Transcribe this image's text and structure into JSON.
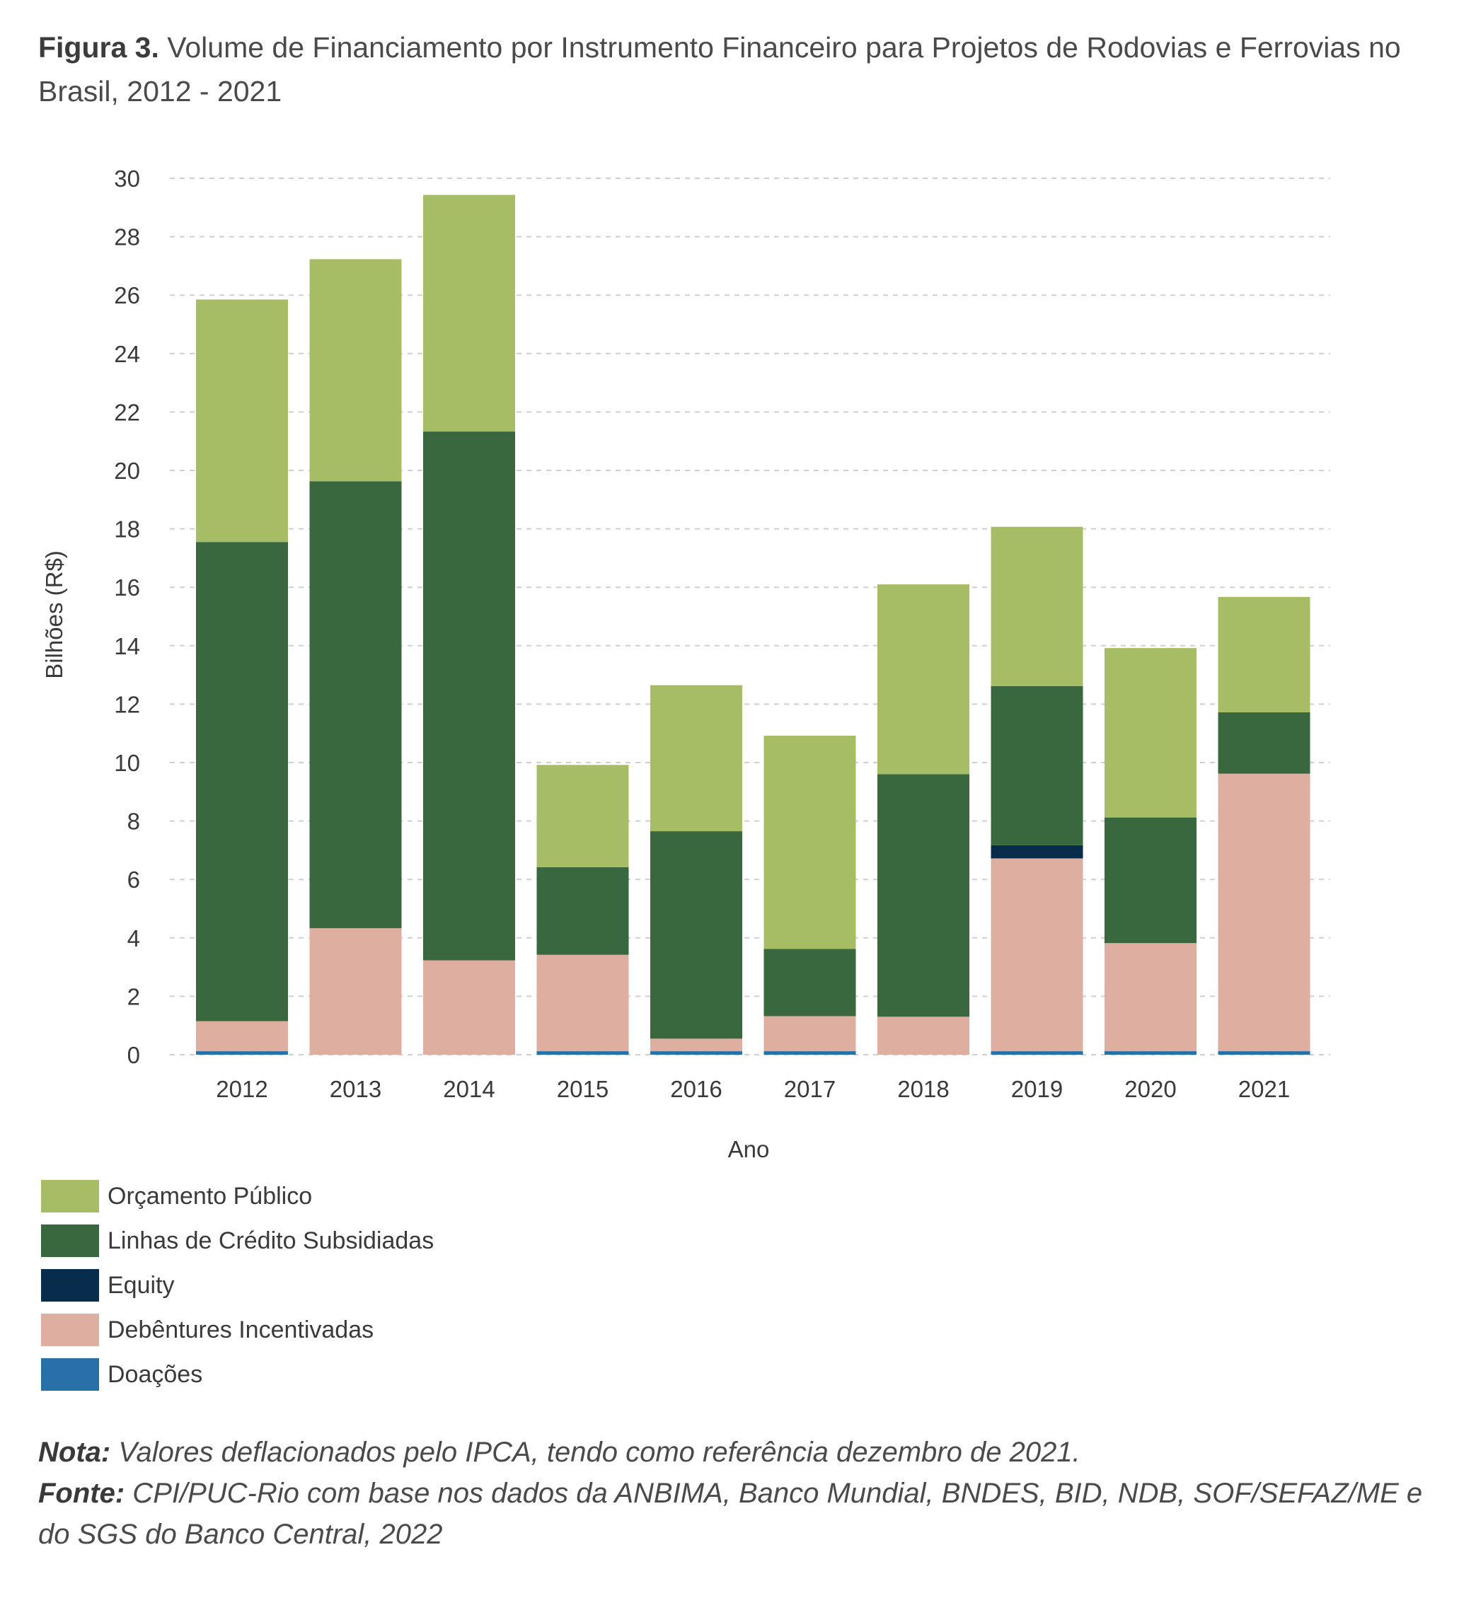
{
  "figure": {
    "label": "Figura 3.",
    "title": "Volume de Financiamento por Instrumento Financeiro para Projetos de Rodovias e Ferrovias no Brasil, 2012 - 2021"
  },
  "chart_data": {
    "type": "bar",
    "stacked": true,
    "xlabel": "Ano",
    "ylabel": "Bilhões (R$)",
    "ylim": [
      0,
      30
    ],
    "yticks": [
      0,
      2,
      4,
      6,
      8,
      10,
      12,
      14,
      16,
      18,
      20,
      22,
      24,
      26,
      28,
      30
    ],
    "grid": true,
    "legend_position": "bottom-left",
    "categories": [
      "2012",
      "2013",
      "2014",
      "2015",
      "2016",
      "2017",
      "2018",
      "2019",
      "2020",
      "2021"
    ],
    "series": [
      {
        "name": "Doações",
        "color": "#2770a8",
        "values": [
          0.12,
          0,
          0,
          0.12,
          0.12,
          0.12,
          0,
          0.12,
          0.12,
          0.12
        ]
      },
      {
        "name": "Debêntures Incentivadas",
        "color": "#deaea1",
        "values": [
          1.03,
          4.33,
          3.23,
          3.3,
          0.43,
          1.2,
          1.3,
          6.6,
          3.7,
          9.5
        ]
      },
      {
        "name": "Equity",
        "color": "#082c4b",
        "values": [
          0,
          0,
          0,
          0,
          0,
          0,
          0,
          0.45,
          0,
          0
        ]
      },
      {
        "name": "Linhas de Crédito Subsidiadas",
        "color": "#39683e",
        "values": [
          16.4,
          15.3,
          18.1,
          3.0,
          7.1,
          2.3,
          8.3,
          5.45,
          4.3,
          2.1
        ]
      },
      {
        "name": "Orçamento Público",
        "color": "#a7bd65",
        "values": [
          8.3,
          7.6,
          8.1,
          3.5,
          5.0,
          7.3,
          6.5,
          5.45,
          5.8,
          3.95
        ]
      }
    ]
  },
  "legend": {
    "items": [
      {
        "label": "Orçamento Público",
        "color": "#a7bd65"
      },
      {
        "label": "Linhas de Crédito Subsidiadas",
        "color": "#39683e"
      },
      {
        "label": "Equity",
        "color": "#082c4b"
      },
      {
        "label": "Debêntures Incentivadas",
        "color": "#deaea1"
      },
      {
        "label": "Doações",
        "color": "#2770a8"
      }
    ]
  },
  "notes": {
    "nota_key": "Nota:",
    "nota_text": " Valores deflacionados pelo IPCA, tendo como referência dezembro de 2021.",
    "fonte_key": "Fonte:",
    "fonte_text": " CPI/PUC-Rio com base nos dados da ANBIMA, Banco Mundial, BNDES, BID, NDB, SOF/SEFAZ/ME e do SGS do Banco Central, 2022"
  }
}
